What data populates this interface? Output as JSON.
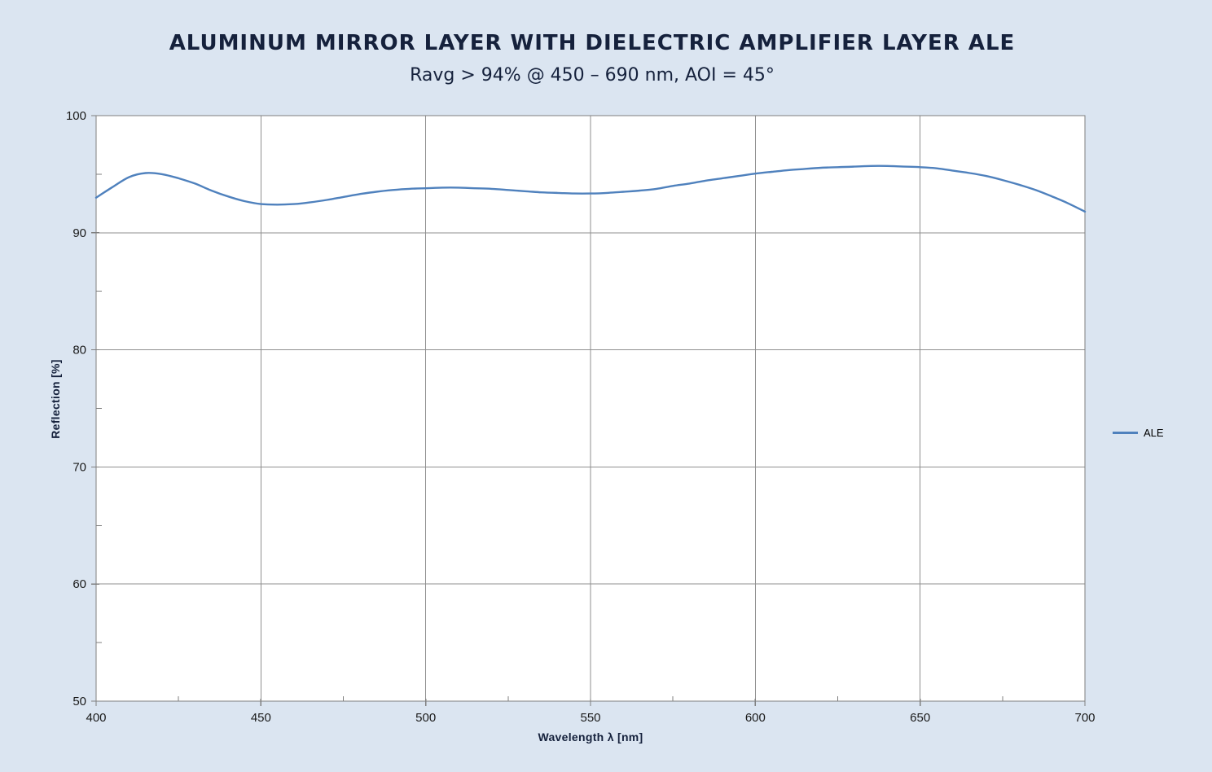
{
  "header": {
    "title": "ALUMINUM MIRROR LAYER WITH DIELECTRIC AMPLIFIER LAYER ALE",
    "subtitle": "Ravg > 94% @ 450 – 690 nm, AOI = 45°"
  },
  "chart_data": {
    "type": "line",
    "title": "ALUMINUM MIRROR LAYER WITH DIELECTRIC AMPLIFIER LAYER ALE",
    "subtitle": "Ravg > 94% @ 450 – 690 nm, AOI = 45°",
    "xlabel": "Wavelength λ [nm]",
    "ylabel": "Reflection [%]",
    "xlim": [
      400,
      700
    ],
    "ylim": [
      50,
      100
    ],
    "x_ticks": [
      400,
      450,
      500,
      550,
      600,
      650,
      700
    ],
    "y_ticks": [
      50,
      60,
      70,
      80,
      90,
      100
    ],
    "x_minor_ticks": [
      425,
      475,
      525,
      575,
      625,
      675
    ],
    "y_minor_ticks": [
      55,
      65,
      75,
      85,
      95
    ],
    "grid": true,
    "legend_position": "right-middle",
    "series": [
      {
        "name": "ALE",
        "color": "#4f81bd",
        "x": [
          400,
          405,
          410,
          415,
          420,
          425,
          430,
          435,
          440,
          445,
          450,
          455,
          460,
          465,
          470,
          475,
          480,
          485,
          490,
          495,
          500,
          505,
          510,
          515,
          520,
          525,
          530,
          535,
          540,
          545,
          550,
          555,
          560,
          565,
          570,
          575,
          580,
          585,
          590,
          595,
          600,
          605,
          610,
          615,
          620,
          625,
          630,
          635,
          640,
          645,
          650,
          655,
          660,
          665,
          670,
          675,
          680,
          685,
          690,
          695,
          700
        ],
        "y": [
          93.0,
          93.9,
          94.75,
          95.1,
          95.0,
          94.65,
          94.2,
          93.6,
          93.1,
          92.7,
          92.45,
          92.4,
          92.45,
          92.6,
          92.8,
          93.05,
          93.3,
          93.5,
          93.65,
          93.75,
          93.8,
          93.85,
          93.85,
          93.8,
          93.75,
          93.65,
          93.55,
          93.45,
          93.4,
          93.35,
          93.35,
          93.4,
          93.5,
          93.6,
          93.75,
          94.0,
          94.2,
          94.45,
          94.65,
          94.85,
          95.05,
          95.2,
          95.35,
          95.45,
          95.55,
          95.6,
          95.65,
          95.7,
          95.7,
          95.65,
          95.6,
          95.5,
          95.3,
          95.1,
          94.85,
          94.5,
          94.1,
          93.65,
          93.1,
          92.5,
          91.8
        ]
      }
    ]
  },
  "colors": {
    "page_bg": "#dbe5f1",
    "plot_bg": "#ffffff",
    "grid": "#8f8f8f",
    "axis": "#7f7f7f",
    "line": "#4f81bd",
    "heading_text": "#15213c",
    "tick_text": "#1a1a1a",
    "legend_text": "#000000"
  }
}
